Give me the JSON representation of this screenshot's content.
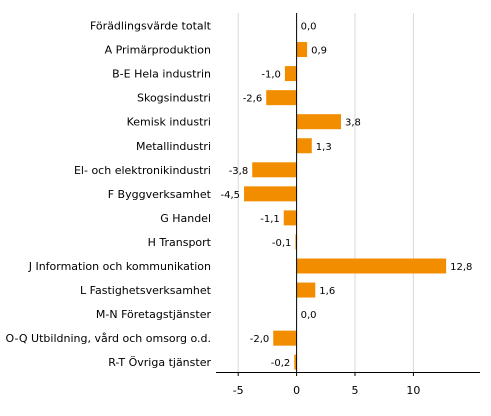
{
  "chart_data": {
    "type": "bar",
    "orientation": "horizontal",
    "categories": [
      "Förädlingsvärde totalt",
      "A Primärproduktion",
      "B-E Hela industrin",
      "Skogsindustri",
      "Kemisk industri",
      "Metallindustri",
      "El- och elektronikindustri",
      "F Byggverksamhet",
      "G Handel",
      "H Transport",
      "J Information och kommunikation",
      "L Fastighetsverksamhet",
      "M-N Företagstjänster",
      "O-Q Utbildning, vård och omsorg o.d.",
      "R-T Övriga tjänster"
    ],
    "values": [
      0.0,
      0.9,
      -1.0,
      -2.6,
      3.8,
      1.3,
      -3.8,
      -4.5,
      -1.1,
      -0.1,
      12.8,
      1.6,
      0.0,
      -2.0,
      -0.2
    ],
    "value_labels": [
      "0,0",
      "0,9",
      "-1,0",
      "-2,6",
      "3,8",
      "1,3",
      "-3,8",
      "-4,5",
      "-1,1",
      "-0,1",
      "12,8",
      "1,6",
      "0,0",
      "-2,0",
      "-0,2"
    ],
    "xlim": [
      -6.9,
      15.7
    ],
    "xticks": [
      -5,
      0,
      5,
      10
    ],
    "xtick_labels": [
      "-5",
      "0",
      "5",
      "10"
    ],
    "grid": "vertical",
    "legend": "none",
    "title": "",
    "xlabel": "",
    "ylabel": "",
    "bar_color": "#f28d00",
    "grid_color": "#d9d9d9",
    "axis_color": "#000000"
  }
}
